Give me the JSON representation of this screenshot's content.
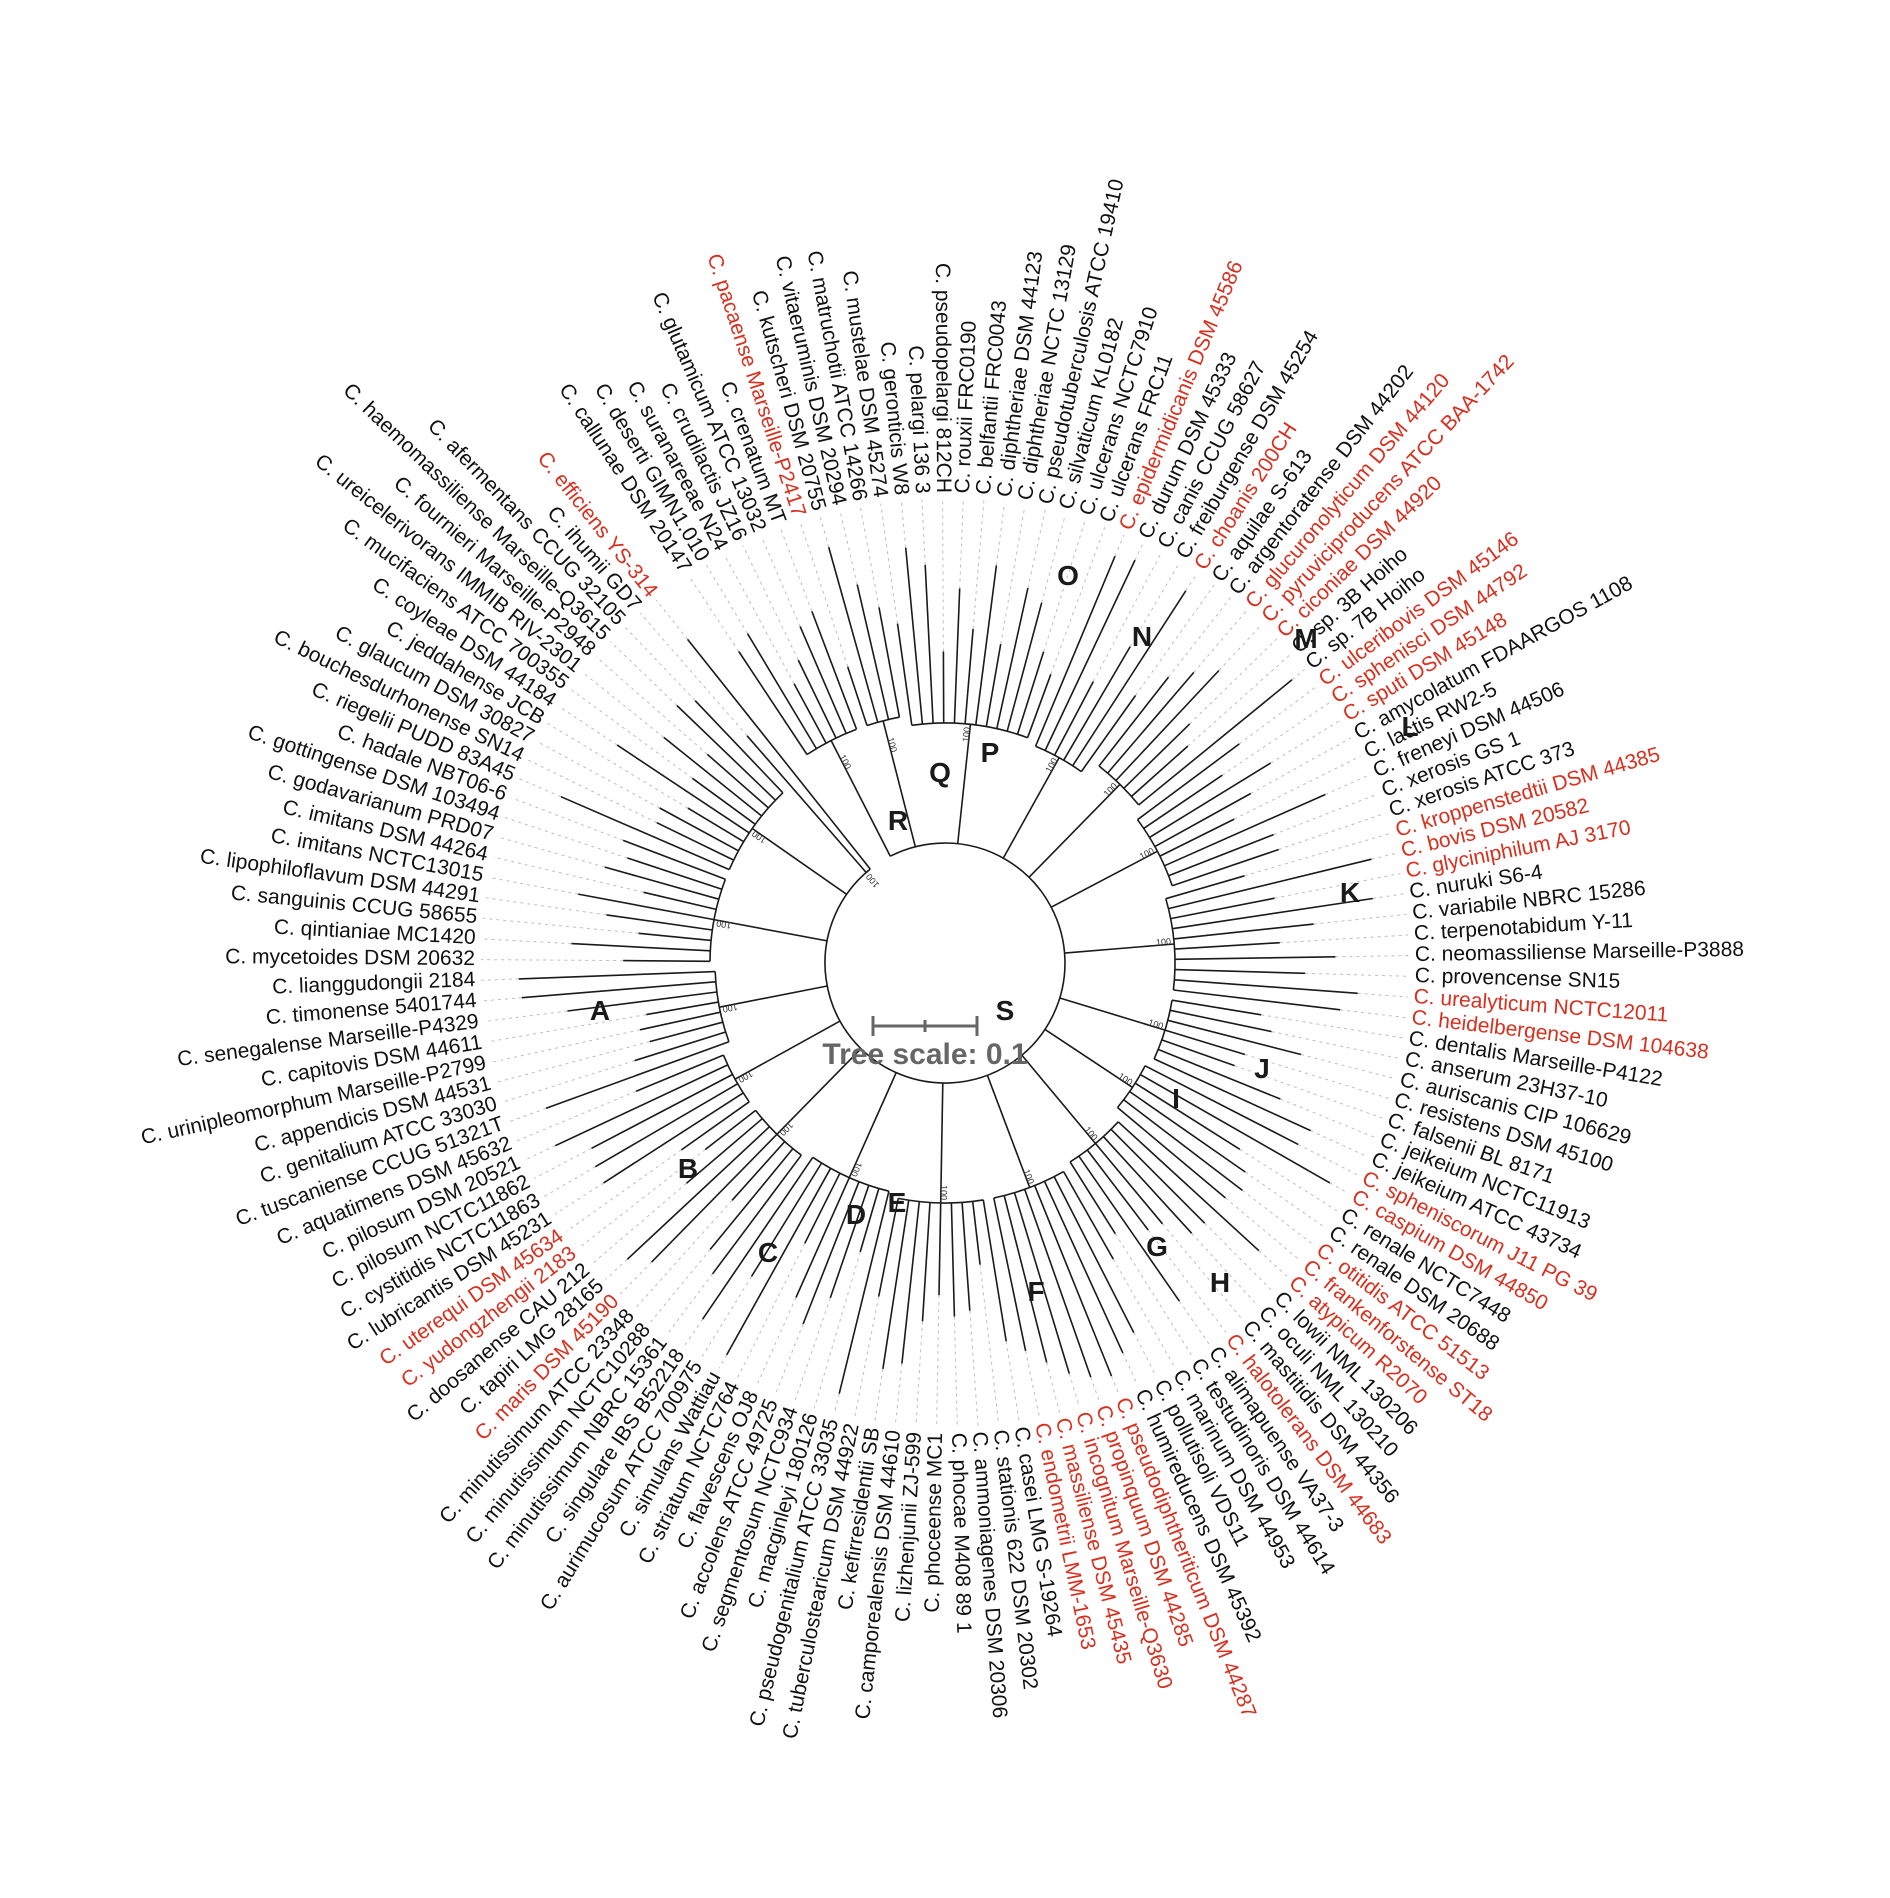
{
  "colors": {
    "highlight": "#d7301f",
    "normal": "#111111",
    "scale": "#666666"
  },
  "scale_bar": {
    "label": "Tree scale: 0.1"
  },
  "clade_labels": [
    "S",
    "R",
    "Q",
    "P",
    "O",
    "N",
    "M",
    "L",
    "K",
    "J",
    "I",
    "H",
    "G",
    "F",
    "E",
    "D",
    "C",
    "B",
    "A"
  ],
  "bootstrap_label": "100",
  "leaves": [
    {
      "name": "C. callunae DSM 20147",
      "hl": false
    },
    {
      "name": "C. deserti GIMN1.010",
      "hl": false
    },
    {
      "name": "C. suranareeae N24",
      "hl": false
    },
    {
      "name": "C. crudilactis JZ16",
      "hl": false
    },
    {
      "name": "C. glutamicum ATCC 13032",
      "hl": false
    },
    {
      "name": "C. crenatum MT",
      "hl": false
    },
    {
      "name": "C. pacaense Marseille-P2417",
      "hl": true
    },
    {
      "name": "C. kutscheri DSM 20755",
      "hl": false
    },
    {
      "name": "C. vitaeruminis DSM 20294",
      "hl": false
    },
    {
      "name": "C. matruchotii ATCC 14266",
      "hl": false
    },
    {
      "name": "C. mustelae DSM 45274",
      "hl": false
    },
    {
      "name": "C. geronticis W8",
      "hl": false
    },
    {
      "name": "C. pelargi 136 3",
      "hl": false
    },
    {
      "name": "C. pseudopelargi 812CH",
      "hl": false
    },
    {
      "name": "C. rouxii FRC0190",
      "hl": false
    },
    {
      "name": "C. belfantii FRC0043",
      "hl": false
    },
    {
      "name": "C. diphtheriae DSM 44123",
      "hl": false
    },
    {
      "name": "C. diphtheriae NCTC 13129",
      "hl": false
    },
    {
      "name": "C. pseudotuberculosis ATCC 19410",
      "hl": false
    },
    {
      "name": "C. silvaticum KL0182",
      "hl": false
    },
    {
      "name": "C. ulcerans NCTC7910",
      "hl": false
    },
    {
      "name": "C. ulcerans FRC11",
      "hl": false
    },
    {
      "name": "C. epidermidicanis DSM 45586",
      "hl": true
    },
    {
      "name": "C. durum DSM 45333",
      "hl": false
    },
    {
      "name": "C. canis CCUG 58627",
      "hl": false
    },
    {
      "name": "C. freiburgense DSM 45254",
      "hl": false
    },
    {
      "name": "C. choanis 200CH",
      "hl": true
    },
    {
      "name": "C. aquilae S-613",
      "hl": false
    },
    {
      "name": "C. argentoratense DSM 44202",
      "hl": false
    },
    {
      "name": "C. glucuronolyticum DSM 44120",
      "hl": true
    },
    {
      "name": "C. pyruviciproducens ATCC BAA-1742",
      "hl": true
    },
    {
      "name": "C. ciconiae DSM 44920",
      "hl": true
    },
    {
      "name": "C. sp. 3B Hoiho",
      "hl": false
    },
    {
      "name": "C. sp. 7B Hoiho",
      "hl": false
    },
    {
      "name": "C. ulceribovis DSM 45146",
      "hl": true
    },
    {
      "name": "C. sphenisci DSM 44792",
      "hl": true
    },
    {
      "name": "C. sputi DSM 45148",
      "hl": true
    },
    {
      "name": "C. amycolatum FDAARGOS 1108",
      "hl": false
    },
    {
      "name": "C. lactis RW2-5",
      "hl": false
    },
    {
      "name": "C. freneyi DSM 44506",
      "hl": false
    },
    {
      "name": "C. xerosis GS 1",
      "hl": false
    },
    {
      "name": "C. xerosis ATCC 373",
      "hl": false
    },
    {
      "name": "C. kroppenstedtii DSM 44385",
      "hl": true
    },
    {
      "name": "C. bovis DSM 20582",
      "hl": true
    },
    {
      "name": "C. glyciniphilum AJ 3170",
      "hl": true
    },
    {
      "name": "C. nuruki S6-4",
      "hl": false
    },
    {
      "name": "C. variabile NBRC 15286",
      "hl": false
    },
    {
      "name": "C. terpenotabidum Y-11",
      "hl": false
    },
    {
      "name": "C. neomassiliense Marseille-P3888",
      "hl": false
    },
    {
      "name": "C. provencense SN15",
      "hl": false
    },
    {
      "name": "C. urealyticum NCTC12011",
      "hl": true
    },
    {
      "name": "C. heidelbergense DSM 104638",
      "hl": true
    },
    {
      "name": "C. dentalis Marseille-P4122",
      "hl": false
    },
    {
      "name": "C. anserum 23H37-10",
      "hl": false
    },
    {
      "name": "C. auriscanis CIP 106629",
      "hl": false
    },
    {
      "name": "C. resistens DSM 45100",
      "hl": false
    },
    {
      "name": "C. falsenii BL 8171",
      "hl": false
    },
    {
      "name": "C. jeikeium NCTC11913",
      "hl": false
    },
    {
      "name": "C. jeikeium ATCC 43734",
      "hl": false
    },
    {
      "name": "C. spheniscorum J11 PG 39",
      "hl": true
    },
    {
      "name": "C. caspium DSM 44850",
      "hl": true
    },
    {
      "name": "C. renale NCTC7448",
      "hl": false
    },
    {
      "name": "C. renale DSM 20688",
      "hl": false
    },
    {
      "name": "C. otitidis ATCC 51513",
      "hl": true
    },
    {
      "name": "C. frankenforstense ST18",
      "hl": true
    },
    {
      "name": "C. atypicum R2070",
      "hl": true
    },
    {
      "name": "C. lowii NML 130206",
      "hl": false
    },
    {
      "name": "C. oculi NML 130210",
      "hl": false
    },
    {
      "name": "C. mastitidis DSM 44356",
      "hl": false
    },
    {
      "name": "C. halotolerans DSM 44683",
      "hl": true
    },
    {
      "name": "C. alimapuense VA37-3",
      "hl": false
    },
    {
      "name": "C. testudinoris DSM 44614",
      "hl": false
    },
    {
      "name": "C. marinum DSM 44953",
      "hl": false
    },
    {
      "name": "C. pollutisoli VDS11",
      "hl": false
    },
    {
      "name": "C. humireducens DSM 45392",
      "hl": false
    },
    {
      "name": "C. pseudodiphtheriticum DSM 44287",
      "hl": true
    },
    {
      "name": "C. propinquum DSM 44285",
      "hl": true
    },
    {
      "name": "C. incognitum Marseille-Q3630",
      "hl": true
    },
    {
      "name": "C. massiliense DSM 45435",
      "hl": true
    },
    {
      "name": "C. endometrii LMM-1653",
      "hl": true
    },
    {
      "name": "C. casei LMG S-19264",
      "hl": false
    },
    {
      "name": "C. stationis 622 DSM 20302",
      "hl": false
    },
    {
      "name": "C. ammoniagenes DSM 20306",
      "hl": false
    },
    {
      "name": "C. phocae M408 89 1",
      "hl": false
    },
    {
      "name": "C. phoceense MC1",
      "hl": false
    },
    {
      "name": "C. lizhenjunii ZJ-599",
      "hl": false
    },
    {
      "name": "C. camporealensis DSM 44610",
      "hl": false
    },
    {
      "name": "C. kefirresidentii SB",
      "hl": false
    },
    {
      "name": "C. tuberculostearicum DSM 44922",
      "hl": false
    },
    {
      "name": "C. pseudogenitalium ATCC 33035",
      "hl": false
    },
    {
      "name": "C. macginleyi 180126",
      "hl": false
    },
    {
      "name": "C. segmentosum NCTC934",
      "hl": false
    },
    {
      "name": "C. accolens ATCC 49725",
      "hl": false
    },
    {
      "name": "C. flavescens OJ8",
      "hl": false
    },
    {
      "name": "C. striatum NCTC764",
      "hl": false
    },
    {
      "name": "C. simulans Wattiau",
      "hl": false
    },
    {
      "name": "C. aurimucosum ATCC 700975",
      "hl": false
    },
    {
      "name": "C. singulare IBS B52218",
      "hl": false
    },
    {
      "name": "C. minutissimum NBRC 15361",
      "hl": false
    },
    {
      "name": "C. minutissimum NCTC10288",
      "hl": false
    },
    {
      "name": "C. minutissimum ATCC 23348",
      "hl": false
    },
    {
      "name": "C. maris DSM 45190",
      "hl": true
    },
    {
      "name": "C. tapiri LMG 28165",
      "hl": false
    },
    {
      "name": "C. doosanense CAU 212",
      "hl": false
    },
    {
      "name": "C. yudongzhengii 2183",
      "hl": true
    },
    {
      "name": "C. uterequi DSM 45634",
      "hl": true
    },
    {
      "name": "C. lubricantis DSM 45231",
      "hl": false
    },
    {
      "name": "C. cystitidis NCTC11863",
      "hl": false
    },
    {
      "name": "C. pilosum NCTC11862",
      "hl": false
    },
    {
      "name": "C. pilosum DSM 20521",
      "hl": false
    },
    {
      "name": "C. aquatimens DSM 45632",
      "hl": false
    },
    {
      "name": "C. tuscaniense CCUG 51321T",
      "hl": false
    },
    {
      "name": "C. genitalium ATCC 33030",
      "hl": false
    },
    {
      "name": "C. appendicis DSM 44531",
      "hl": false
    },
    {
      "name": "C. urinipleomorphum Marseille-P2799",
      "hl": false
    },
    {
      "name": "C. capitovis DSM 44611",
      "hl": false
    },
    {
      "name": "C. senegalense Marseille-P4329",
      "hl": false
    },
    {
      "name": "C. timonense 5401744",
      "hl": false
    },
    {
      "name": "C. lianggudongii 2184",
      "hl": false
    },
    {
      "name": "C. mycetoides DSM 20632",
      "hl": false
    },
    {
      "name": "C. qintianiae MC1420",
      "hl": false
    },
    {
      "name": "C. sanguinis CCUG 58655",
      "hl": false
    },
    {
      "name": "C. lipophiloflavum DSM 44291",
      "hl": false
    },
    {
      "name": "C. imitans NCTC13015",
      "hl": false
    },
    {
      "name": "C. imitans DSM 44264",
      "hl": false
    },
    {
      "name": "C. godavarianum PRD07",
      "hl": false
    },
    {
      "name": "C. gottingense DSM 103494",
      "hl": false
    },
    {
      "name": "C. hadale NBT06-6",
      "hl": false
    },
    {
      "name": "C. riegelii PUDD 83A45",
      "hl": false
    },
    {
      "name": "C. bouchesdurhonense SN14",
      "hl": false
    },
    {
      "name": "C. glaucum DSM 30827",
      "hl": false
    },
    {
      "name": "C. jeddahense JCB",
      "hl": false
    },
    {
      "name": "C. coyleae DSM 44184",
      "hl": false
    },
    {
      "name": "C. mucifaciens ATCC 700355",
      "hl": false
    },
    {
      "name": "C. ureicelerivorans IMMIB RIV-2301",
      "hl": false
    },
    {
      "name": "C. fournieri Marseille-P2948",
      "hl": false
    },
    {
      "name": "C. haemomassiliense Marseille-Q3615",
      "hl": false
    },
    {
      "name": "C. afermentans CCUG 32105",
      "hl": false
    },
    {
      "name": "C. ihumii GD7",
      "hl": false
    },
    {
      "name": "C. efficiens YS-314",
      "hl": true
    }
  ]
}
